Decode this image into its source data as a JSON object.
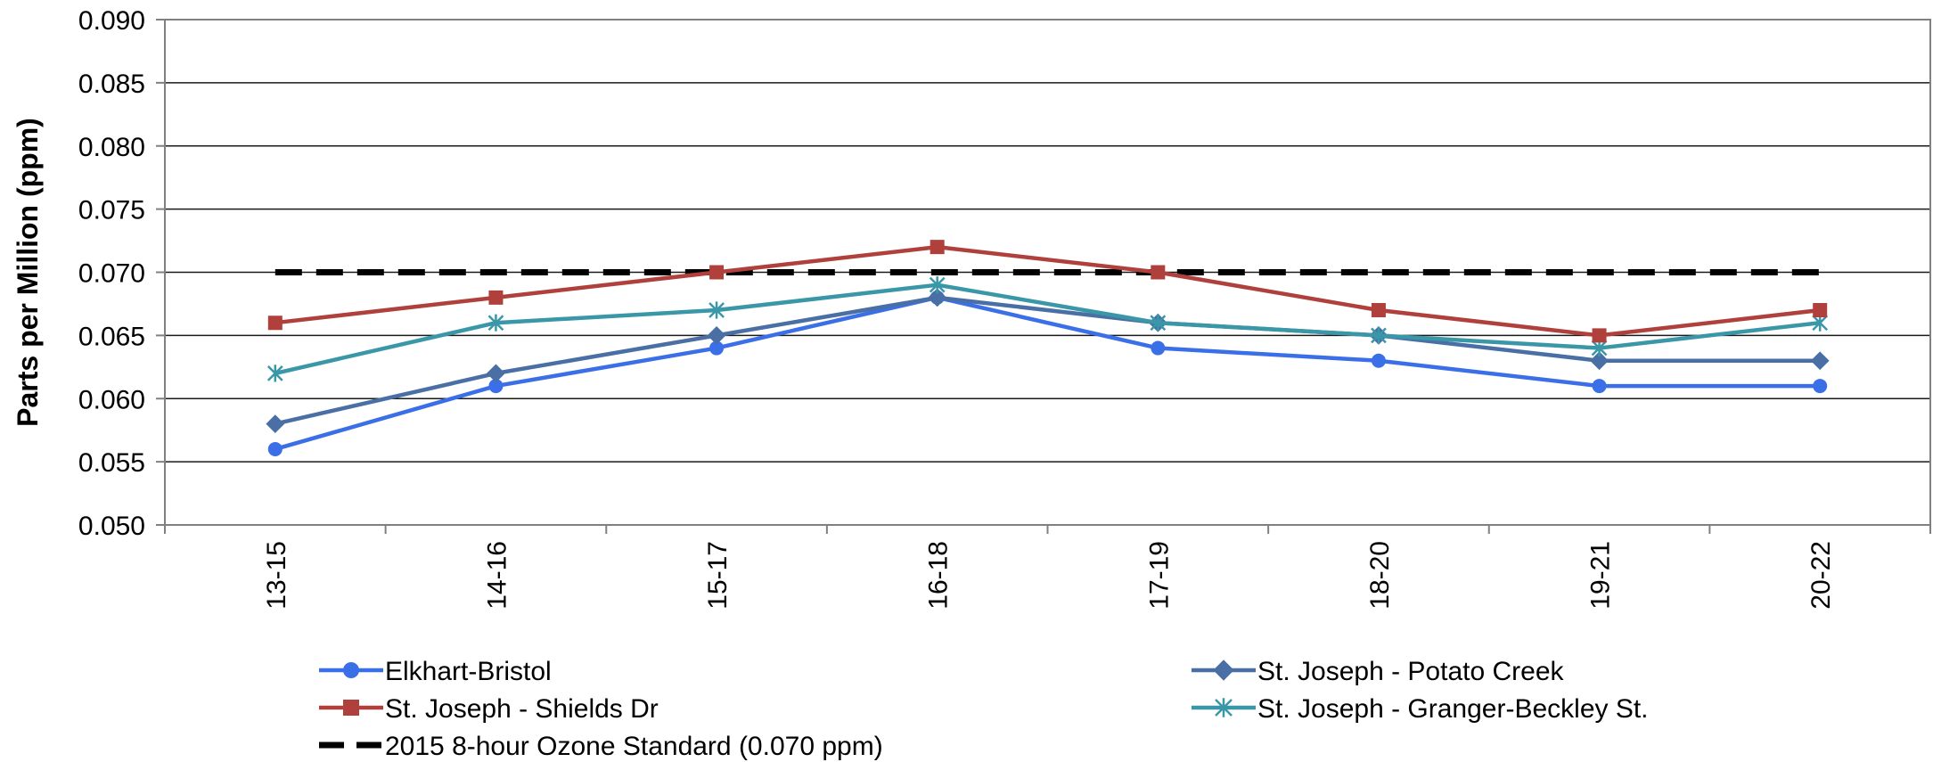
{
  "chart_data": {
    "type": "line",
    "title": "",
    "xlabel": "",
    "ylabel": "Parts per Million (ppm)",
    "categories": [
      "13-15",
      "14-16",
      "15-17",
      "16-18",
      "17-19",
      "18-20",
      "19-21",
      "20-22"
    ],
    "ylim": [
      0.05,
      0.09
    ],
    "yticks": [
      0.05,
      0.055,
      0.06,
      0.065,
      0.07,
      0.075,
      0.08,
      0.085,
      0.09
    ],
    "ytick_labels": [
      "0.050",
      "0.055",
      "0.060",
      "0.065",
      "0.070",
      "0.075",
      "0.080",
      "0.085",
      "0.090"
    ],
    "grid": "horizontal",
    "legend_position": "bottom",
    "series": [
      {
        "name": "Elkhart-Bristol",
        "color": "#3B6FE8",
        "marker": "circle",
        "values": [
          0.056,
          0.061,
          0.064,
          0.068,
          0.064,
          0.063,
          0.061,
          0.061
        ]
      },
      {
        "name": "St. Joseph - Potato Creek",
        "color": "#4A6FA5",
        "marker": "diamond",
        "values": [
          0.058,
          0.062,
          0.065,
          0.068,
          0.066,
          0.065,
          0.063,
          0.063
        ]
      },
      {
        "name": "St. Joseph - Shields Dr",
        "color": "#B0403C",
        "marker": "square",
        "values": [
          0.066,
          0.068,
          0.07,
          0.072,
          0.07,
          0.067,
          0.065,
          0.067
        ]
      },
      {
        "name": "St. Joseph - Granger-Beckley St.",
        "color": "#3A97A8",
        "marker": "asterisk",
        "values": [
          0.062,
          0.066,
          0.067,
          0.069,
          0.066,
          0.065,
          0.064,
          0.066
        ]
      },
      {
        "name": "2015 8-hour Ozone Standard (0.070 ppm)",
        "color": "#000000",
        "marker": "none",
        "dashed": true,
        "values": [
          0.07,
          0.07,
          0.07,
          0.07,
          0.07,
          0.07,
          0.07,
          0.07
        ]
      }
    ]
  }
}
